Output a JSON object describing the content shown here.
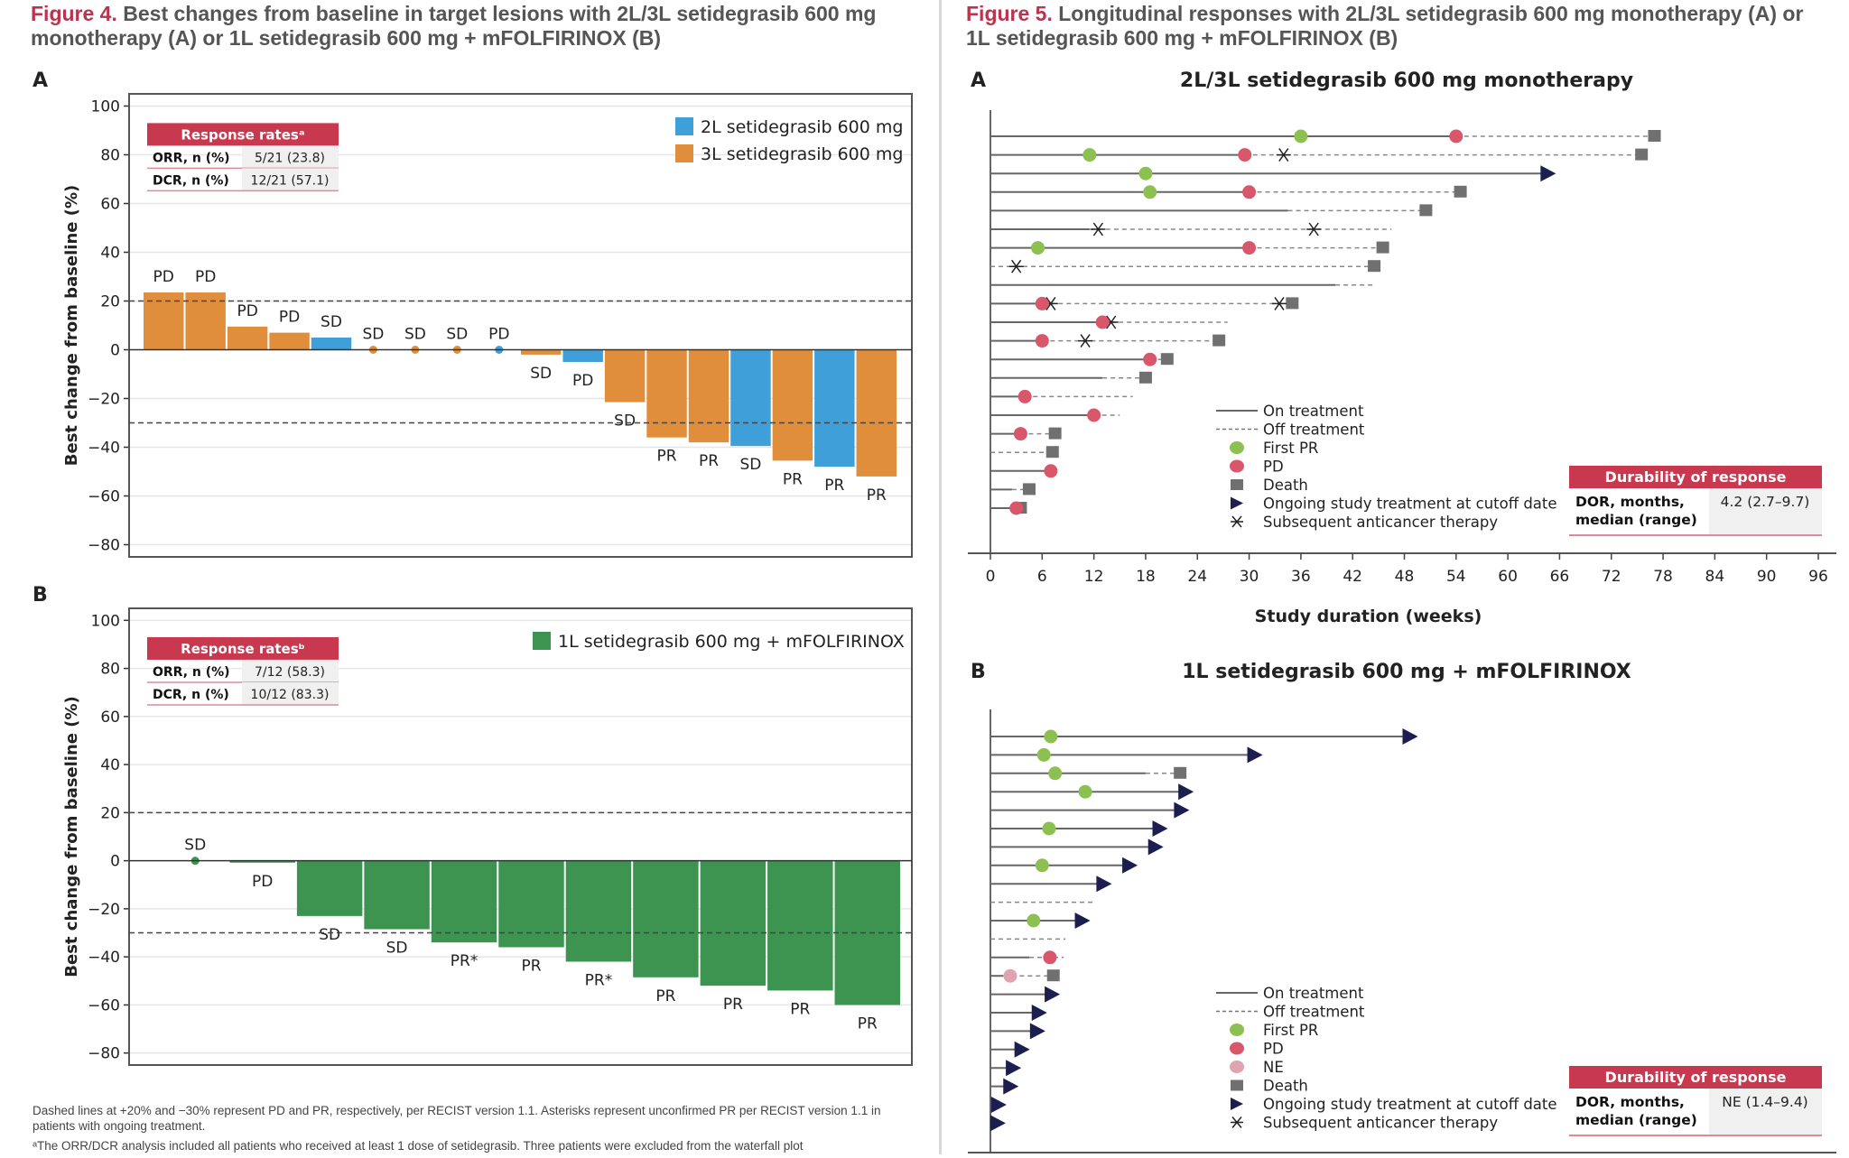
{
  "figure4": {
    "number": "Figure 4.",
    "title": "Best changes from baseline in target lesions with 2L/3L setidegrasib 600 mg monotherapy (A) or 1L setidegrasib 600 mg + mFOLFIRINOX (B)"
  },
  "figure5": {
    "number": "Figure 5.",
    "title": "Longitudinal responses with 2L/3L setidegrasib 600 mg monotherapy (A) or 1L setidegrasib 600 mg + mFOLFIRINOX (B)"
  },
  "footnotes": [
    "Dashed lines at +20% and −30% represent PD and PR, respectively, per RECIST version 1.1. Asterisks represent unconfirmed PR per RECIST version 1.1 in patients with ongoing treatment.",
    "ᵃThe ORR/DCR analysis included all patients who received at least 1 dose of setidegrasib. Three patients were excluded from the waterfall plot"
  ],
  "colors": {
    "accent_red": "#c8384f",
    "orange_3L": "#e08e3c",
    "blue_2L": "#3f9fd8",
    "green_1L": "#3d9450",
    "first_pr": "#8cc152",
    "pd": "#d9576a",
    "ne": "#e0a3b0",
    "death": "#707070",
    "ongoing": "#1d1d4f"
  },
  "chart_data": [
    {
      "id": "fig4A",
      "type": "bar",
      "panel_label": "A",
      "ylabel": "Best change from baseline (%)",
      "ylim": [
        -85,
        105
      ],
      "yticks": [
        100,
        80,
        60,
        40,
        20,
        0,
        -20,
        -40,
        -60,
        -80
      ],
      "reference_lines": [
        20,
        -30
      ],
      "grid": true,
      "legend_position": "top-right",
      "legend": [
        {
          "name": "2L setidegrasib 600 mg",
          "color": "#3f9fd8"
        },
        {
          "name": "3L setidegrasib 600 mg",
          "color": "#e08e3c"
        }
      ],
      "response_table": {
        "header": "Response ratesᵃ",
        "rows": [
          {
            "label": "ORR, n (%)",
            "value": "5/21 (23.8)"
          },
          {
            "label": "DCR, n (%)",
            "value": "12/21 (57.1)"
          }
        ]
      },
      "bars": [
        {
          "value": 23.5,
          "line": "3L",
          "label": "PD"
        },
        {
          "value": 23.5,
          "line": "3L",
          "label": "PD"
        },
        {
          "value": 9.5,
          "line": "3L",
          "label": "PD"
        },
        {
          "value": 7,
          "line": "3L",
          "label": "PD"
        },
        {
          "value": 5,
          "line": "2L",
          "label": "SD"
        },
        {
          "value": 0,
          "line": "3L",
          "label": "SD"
        },
        {
          "value": 0,
          "line": "3L",
          "label": "SD"
        },
        {
          "value": 0,
          "line": "3L",
          "label": "SD"
        },
        {
          "value": 0,
          "line": "2L",
          "label": "PD"
        },
        {
          "value": -2,
          "line": "3L",
          "label": "SD"
        },
        {
          "value": -5,
          "line": "2L",
          "label": "PD"
        },
        {
          "value": -21.5,
          "line": "3L",
          "label": "SD"
        },
        {
          "value": -36,
          "line": "3L",
          "label": "PR"
        },
        {
          "value": -38,
          "line": "3L",
          "label": "PR"
        },
        {
          "value": -39.5,
          "line": "2L",
          "label": "SD"
        },
        {
          "value": -45.5,
          "line": "3L",
          "label": "PR"
        },
        {
          "value": -48,
          "line": "2L",
          "label": "PR"
        },
        {
          "value": -52,
          "line": "3L",
          "label": "PR"
        }
      ]
    },
    {
      "id": "fig4B",
      "type": "bar",
      "panel_label": "B",
      "ylabel": "Best change from baseline (%)",
      "ylim": [
        -85,
        105
      ],
      "yticks": [
        100,
        80,
        60,
        40,
        20,
        0,
        -20,
        -40,
        -60,
        -80
      ],
      "reference_lines": [
        20,
        -30
      ],
      "grid": true,
      "legend_position": "top-right",
      "legend": [
        {
          "name": "1L setidegrasib 600 mg + mFOLFIRINOX",
          "color": "#3d9450"
        }
      ],
      "response_table": {
        "header": "Response ratesᵇ",
        "rows": [
          {
            "label": "ORR, n (%)",
            "value": "7/12 (58.3)"
          },
          {
            "label": "DCR, n (%)",
            "value": "10/12 (83.3)"
          }
        ]
      },
      "bars": [
        {
          "value": 0,
          "label": "SD"
        },
        {
          "value": -0.8,
          "label": "PD"
        },
        {
          "value": -23,
          "label": "SD"
        },
        {
          "value": -28.5,
          "label": "SD"
        },
        {
          "value": -34,
          "label": "PR*"
        },
        {
          "value": -36,
          "label": "PR"
        },
        {
          "value": -42,
          "label": "PR*"
        },
        {
          "value": -48.5,
          "label": "PR"
        },
        {
          "value": -52,
          "label": "PR"
        },
        {
          "value": -54,
          "label": "PR"
        },
        {
          "value": -60,
          "label": "PR"
        }
      ]
    },
    {
      "id": "fig5A",
      "type": "swimmer",
      "panel_label": "A",
      "title": "2L/3L setidegrasib 600 mg monotherapy",
      "xlabel": "Study duration (weeks)",
      "xlim": [
        0,
        96
      ],
      "xticks": [
        0,
        6,
        12,
        18,
        24,
        30,
        36,
        42,
        48,
        54,
        60,
        66,
        72,
        78,
        84,
        90,
        96
      ],
      "legend": [
        "On treatment",
        "Off treatment",
        "First PR",
        "PD",
        "Death",
        "Ongoing study treatment at cutoff date",
        "Subsequent anticancer therapy"
      ],
      "dor_table": {
        "header": "Durability of response",
        "label": "DOR, months, median (range)",
        "value": "4.2 (2.7–9.7)"
      },
      "patients": [
        {
          "on_end": 54,
          "end": 77,
          "first_pr": 36,
          "pd": 54,
          "death": 77,
          "ongoing": false,
          "therapy": []
        },
        {
          "on_end": 29.5,
          "end": 75.5,
          "first_pr": 11.5,
          "pd": 29.5,
          "death": 75.5,
          "ongoing": false,
          "therapy": [
            34
          ]
        },
        {
          "on_end": 64,
          "end": 64,
          "first_pr": 18,
          "pd": null,
          "death": null,
          "ongoing": true,
          "therapy": []
        },
        {
          "on_end": 30,
          "end": 54.5,
          "first_pr": 18.5,
          "pd": 30,
          "death": 54.5,
          "ongoing": false,
          "therapy": []
        },
        {
          "on_end": 34.5,
          "end": 50.5,
          "first_pr": null,
          "pd": null,
          "death": 50.5,
          "ongoing": false,
          "therapy": []
        },
        {
          "on_end": 11.5,
          "end": 46.5,
          "first_pr": null,
          "pd": null,
          "death": null,
          "ongoing": false,
          "therapy": [
            12.5,
            37.5
          ]
        },
        {
          "on_end": 30,
          "end": 45.5,
          "first_pr": 5.5,
          "pd": 30,
          "death": 45.5,
          "ongoing": false,
          "therapy": []
        },
        {
          "on_end": 0,
          "end": 44.5,
          "first_pr": null,
          "pd": null,
          "death": 44.5,
          "ongoing": false,
          "therapy": [
            3
          ]
        },
        {
          "on_end": 40,
          "end": 44.5,
          "first_pr": null,
          "pd": null,
          "death": null,
          "ongoing": false,
          "therapy": []
        },
        {
          "on_end": 6,
          "end": 35,
          "first_pr": null,
          "pd": 6,
          "death": 35,
          "ongoing": false,
          "therapy": [
            7,
            33.5
          ]
        },
        {
          "on_end": 13,
          "end": 27.5,
          "first_pr": null,
          "pd": 13,
          "death": null,
          "ongoing": false,
          "therapy": [
            14
          ]
        },
        {
          "on_end": 6,
          "end": 26.5,
          "first_pr": null,
          "pd": 6,
          "death": 26.5,
          "ongoing": false,
          "therapy": [
            11
          ]
        },
        {
          "on_end": 18.5,
          "end": 20.5,
          "first_pr": null,
          "pd": 18.5,
          "death": 20.5,
          "ongoing": false,
          "therapy": []
        },
        {
          "on_end": 13,
          "end": 18,
          "first_pr": null,
          "pd": null,
          "death": 18,
          "ongoing": false,
          "therapy": []
        },
        {
          "on_end": 4,
          "end": 16.5,
          "first_pr": null,
          "pd": 4,
          "death": null,
          "ongoing": false,
          "therapy": []
        },
        {
          "on_end": 12,
          "end": 15,
          "first_pr": null,
          "pd": 12,
          "death": null,
          "ongoing": false,
          "therapy": []
        },
        {
          "on_end": 3.5,
          "end": 7.5,
          "first_pr": null,
          "pd": 3.5,
          "death": 7.5,
          "ongoing": false,
          "therapy": []
        },
        {
          "on_end": 0,
          "end": 7.2,
          "first_pr": null,
          "pd": null,
          "death": 7.2,
          "ongoing": false,
          "therapy": []
        },
        {
          "on_end": 6.5,
          "end": 7,
          "first_pr": null,
          "pd": 7,
          "death": null,
          "ongoing": false,
          "therapy": []
        },
        {
          "on_end": 2.5,
          "end": 4.5,
          "first_pr": null,
          "pd": null,
          "death": 4.5,
          "ongoing": false,
          "therapy": []
        },
        {
          "on_end": 3,
          "end": 3.5,
          "first_pr": null,
          "pd": 3,
          "death": 3.5,
          "ongoing": false,
          "therapy": []
        }
      ]
    },
    {
      "id": "fig5B",
      "type": "swimmer",
      "panel_label": "B",
      "title": "1L setidegrasib 600 mg + mFOLFIRINOX",
      "xlabel": "Study duration (weeks)",
      "xlim": [
        0,
        96
      ],
      "xticks": [
        0,
        6,
        12,
        18,
        24,
        30,
        36,
        42,
        48,
        54,
        60,
        66,
        72,
        78,
        84,
        90,
        96
      ],
      "legend": [
        "On treatment",
        "Off treatment",
        "First PR",
        "PD",
        "NE",
        "Death",
        "Ongoing study treatment at cutoff date",
        "Subsequent anticancer therapy"
      ],
      "dor_table": {
        "header": "Durability of response",
        "label": "DOR, months, median (range)",
        "value": "NE (1.4–9.4)"
      },
      "patients": [
        {
          "on_end": 48,
          "end": 48,
          "first_pr": 7,
          "ongoing": true
        },
        {
          "on_end": 30,
          "end": 30,
          "first_pr": 6.2,
          "ongoing": true
        },
        {
          "on_end": 18,
          "end": 22,
          "first_pr": 7.5,
          "death": 22,
          "ongoing": false
        },
        {
          "on_end": 22,
          "end": 22,
          "first_pr": 11,
          "ongoing": true
        },
        {
          "on_end": 21.5,
          "end": 21.5,
          "ongoing": true
        },
        {
          "on_end": 19,
          "end": 19,
          "first_pr": 6.8,
          "ongoing": true
        },
        {
          "on_end": 18.5,
          "end": 18.5,
          "ongoing": true
        },
        {
          "on_end": 15.5,
          "end": 15.5,
          "first_pr": 6,
          "ongoing": true
        },
        {
          "on_end": 12.5,
          "end": 12.5,
          "ongoing": true
        },
        {
          "on_end": 0,
          "end": 12,
          "ongoing": false
        },
        {
          "on_end": 10,
          "end": 10,
          "first_pr": 5,
          "ongoing": true
        },
        {
          "on_end": 0,
          "end": 8.7,
          "ongoing": false
        },
        {
          "on_end": 4.5,
          "end": 8.5,
          "pd": 6.9,
          "ongoing": false
        },
        {
          "on_end": 1.5,
          "end": 7.3,
          "ne": 2.3,
          "death": 7.3,
          "ongoing": false
        },
        {
          "on_end": 6.5,
          "end": 6.5,
          "ongoing": true
        },
        {
          "on_end": 5,
          "end": 5,
          "ongoing": true
        },
        {
          "on_end": 4.8,
          "end": 4.8,
          "ongoing": true
        },
        {
          "on_end": 3,
          "end": 3,
          "ongoing": true
        },
        {
          "on_end": 2,
          "end": 2,
          "ongoing": true
        },
        {
          "on_end": 1.7,
          "end": 1.7,
          "ongoing": true
        },
        {
          "on_end": 0.3,
          "end": 0.3,
          "ongoing": true
        },
        {
          "on_end": 0.2,
          "end": 0.2,
          "ongoing": true
        }
      ]
    }
  ]
}
